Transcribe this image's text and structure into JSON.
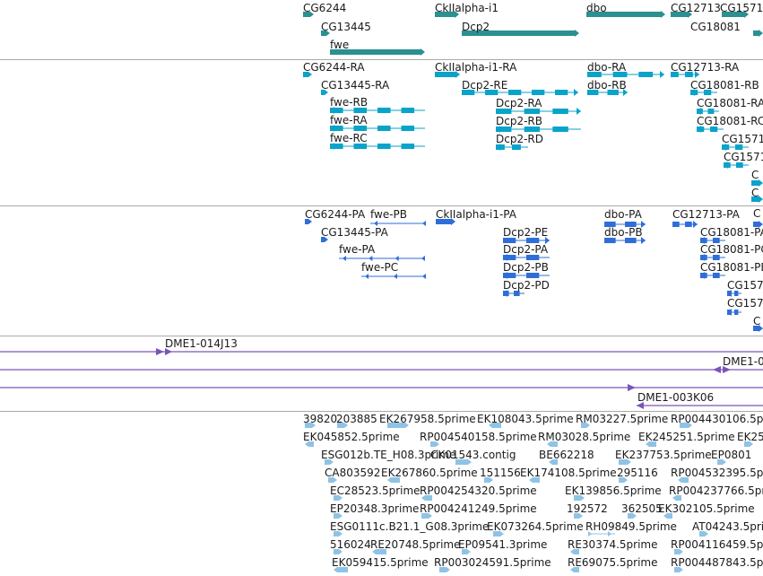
{
  "colors": {
    "gene": "#2a9090",
    "transcript": "#0aa3c9",
    "protein": "#2f6ed8",
    "clone": "#7a55b7",
    "est": "#8fc3e5",
    "separator": "#a9a9a9"
  },
  "tracks": {
    "genes": {
      "features": [
        {
          "label": "CG6244"
        },
        {
          "label": "CG13445"
        },
        {
          "label": "fwe"
        },
        {
          "label": "CkIIalpha-i1"
        },
        {
          "label": "Dcp2"
        },
        {
          "label": "dbo"
        },
        {
          "label": "CG12713"
        },
        {
          "label": "CG1571"
        },
        {
          "label": "CG18081"
        }
      ]
    },
    "transcripts": {
      "features": [
        {
          "label": "CG6244-RA"
        },
        {
          "label": "CG13445-RA"
        },
        {
          "label": "fwe-RB"
        },
        {
          "label": "fwe-RA"
        },
        {
          "label": "fwe-RC"
        },
        {
          "label": "CkIIalpha-i1-RA"
        },
        {
          "label": "Dcp2-RE"
        },
        {
          "label": "Dcp2-RA"
        },
        {
          "label": "Dcp2-RB"
        },
        {
          "label": "Dcp2-RD"
        },
        {
          "label": "dbo-RA"
        },
        {
          "label": "dbo-RB"
        },
        {
          "label": "CG12713-RA"
        },
        {
          "label": "CG18081-RB"
        },
        {
          "label": "CG18081-RA"
        },
        {
          "label": "CG18081-RC"
        },
        {
          "label": "CG1571"
        },
        {
          "label": "CG1571"
        },
        {
          "label": "C"
        },
        {
          "label": "C"
        }
      ]
    },
    "proteins": {
      "features": [
        {
          "label": "CG6244-PA"
        },
        {
          "label": "fwe-PB"
        },
        {
          "label": "CG13445-PA"
        },
        {
          "label": "fwe-PA"
        },
        {
          "label": "fwe-PC"
        },
        {
          "label": "CkIIalpha-i1-PA"
        },
        {
          "label": "Dcp2-PE"
        },
        {
          "label": "Dcp2-PA"
        },
        {
          "label": "Dcp2-PB"
        },
        {
          "label": "Dcp2-PD"
        },
        {
          "label": "dbo-PA"
        },
        {
          "label": "dbo-PB"
        },
        {
          "label": "CG12713-PA"
        },
        {
          "label": "CG18081-PA"
        },
        {
          "label": "CG18081-PC"
        },
        {
          "label": "CG18081-PB"
        },
        {
          "label": "CG157"
        },
        {
          "label": "CG157"
        },
        {
          "label": "C"
        },
        {
          "label": "C"
        }
      ]
    },
    "clones": {
      "features": [
        {
          "label": "DME1-014J13"
        },
        {
          "label": "DME1-0"
        },
        {
          "label": "DME1-003K06"
        }
      ]
    },
    "ests": {
      "features": [
        {
          "label": "39820"
        },
        {
          "label": "203885"
        },
        {
          "label": "EK267958.5prime"
        },
        {
          "label": "EK108043.5prime"
        },
        {
          "label": "RM03227.5prime"
        },
        {
          "label": "RP004430106.5prime"
        },
        {
          "label": "EK045852.5prime"
        },
        {
          "label": "RP004540158.5prime"
        },
        {
          "label": "RM03028.5prime"
        },
        {
          "label": "EK245251.5prime"
        },
        {
          "label": "EK25"
        },
        {
          "label": "ESG012b.TE_H08.3prime"
        },
        {
          "label": "CK01543.contig"
        },
        {
          "label": "BE662218"
        },
        {
          "label": "EK237753.5prime"
        },
        {
          "label": "EP0801"
        },
        {
          "label": "CA803592"
        },
        {
          "label": "EK267860.5prime"
        },
        {
          "label": "151156"
        },
        {
          "label": "EK174108.5prime"
        },
        {
          "label": "295116"
        },
        {
          "label": "RP004532395.5prime"
        },
        {
          "label": "EC28523.5prime"
        },
        {
          "label": "RP004254320.5prime"
        },
        {
          "label": "EK139856.5prime"
        },
        {
          "label": "RP004237766.5prime"
        },
        {
          "label": "EP20348.3prime"
        },
        {
          "label": "RP004241249.5prime"
        },
        {
          "label": "192572"
        },
        {
          "label": "362505"
        },
        {
          "label": "EK302105.5prime"
        },
        {
          "label": "ESG0111c.B21.1_G08.3prime"
        },
        {
          "label": "EK073264.5prime"
        },
        {
          "label": "RH09849.5prime"
        },
        {
          "label": "AT04243.5prime"
        },
        {
          "label": "516024"
        },
        {
          "label": "RE20748.5prime"
        },
        {
          "label": "EP09541.3prime"
        },
        {
          "label": "RE30374.5prime"
        },
        {
          "label": "RP004116459.5prime"
        },
        {
          "label": "EK059415.5prime"
        },
        {
          "label": "RP003024591.5prime"
        },
        {
          "label": "RE69075.5prime"
        },
        {
          "label": "RP004487843.5prime"
        }
      ]
    }
  }
}
